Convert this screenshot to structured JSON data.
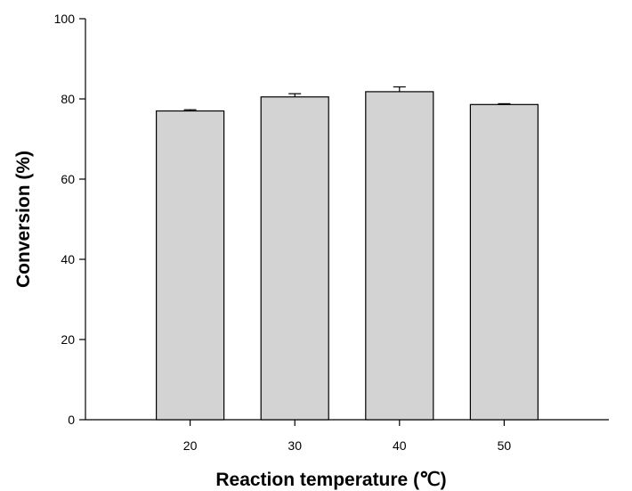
{
  "chart_data": {
    "type": "bar",
    "title": "",
    "xlabel": "Reaction temperature (℃)",
    "ylabel": "Conversion (%)",
    "categories": [
      "20",
      "30",
      "40",
      "50"
    ],
    "series": [
      {
        "values": [
          77.0,
          80.5,
          81.8,
          78.6
        ],
        "error": [
          0.3,
          0.8,
          1.2,
          0.2
        ]
      }
    ],
    "ylim": [
      0,
      100
    ],
    "yticks": [
      "0",
      "20",
      "40",
      "60",
      "80",
      "100"
    ],
    "grid": false,
    "legend": "none",
    "colors": {
      "bar_fill": "#d3d3d3",
      "bar_stroke": "#000000",
      "axis": "#000000"
    }
  }
}
